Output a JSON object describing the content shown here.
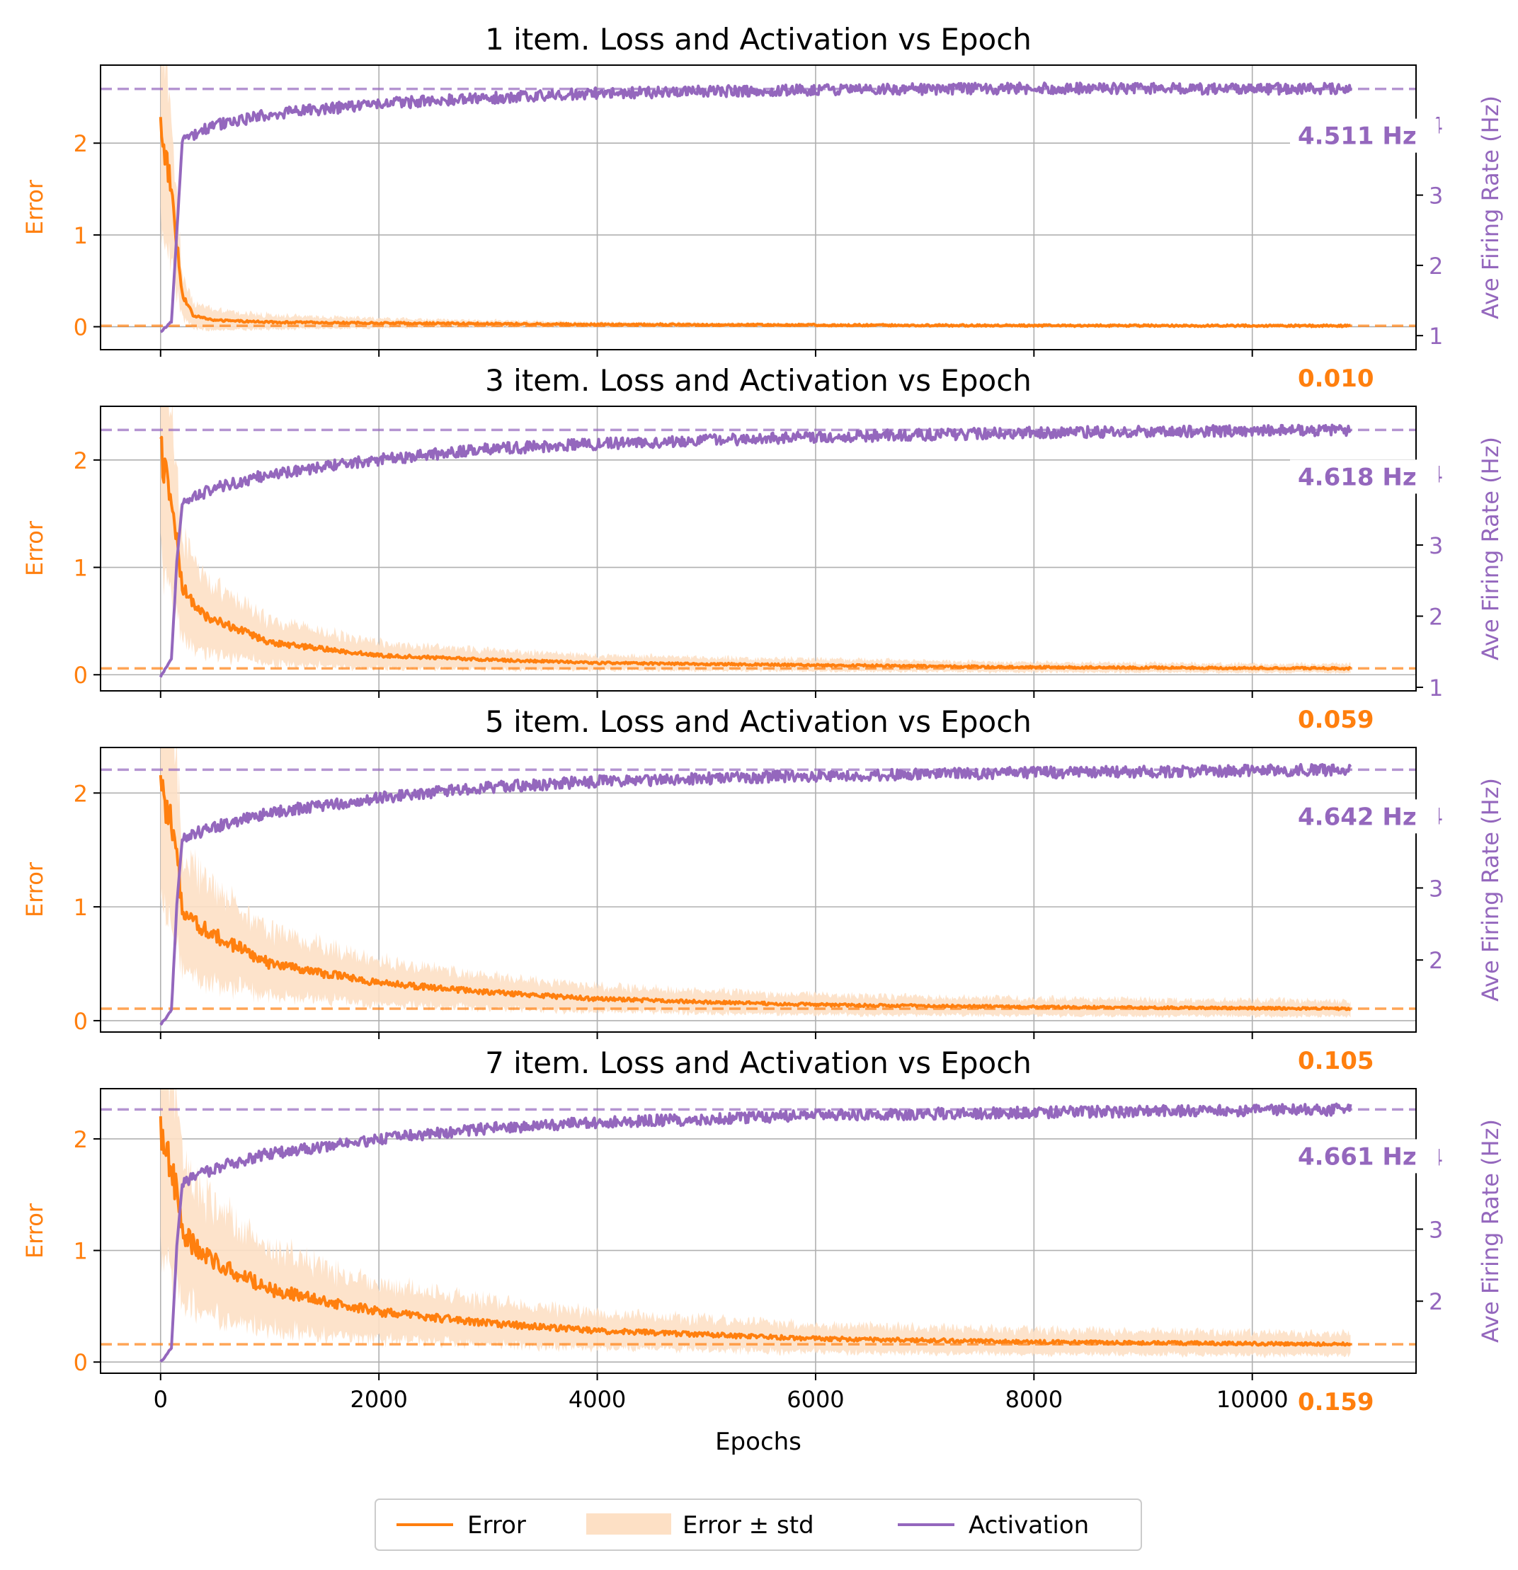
{
  "colors": {
    "error": "#ff7f0e",
    "error_band": "#fde0c5",
    "activation": "#9467bd",
    "grid": "#b0b0b0",
    "axis": "#000000"
  },
  "chart_data": [
    {
      "type": "line",
      "title": "1 item. Loss and Activation vs Epoch",
      "ylabel_left": "Error",
      "ylabel_right": "Ave Firing Rate (Hz)",
      "xlim": [
        -550,
        11500
      ],
      "ylim_left": [
        -0.25,
        2.85
      ],
      "ylim_right": [
        0.8,
        4.85
      ],
      "yticks_left": [
        0,
        1,
        2
      ],
      "yticks_right": [
        1,
        2,
        3,
        4
      ],
      "final_error": 0.01,
      "final_activation": 4.511,
      "final_error_label": "0.010",
      "final_activation_label": "4.511 Hz",
      "error_start": 2.2,
      "error_std_start": 0.4,
      "error_std_end": 0.04,
      "activation_start": 1.05,
      "activation_knee": 3.8,
      "series": [
        {
          "name": "Error",
          "x": [
            0,
            100,
            150,
            200,
            300,
            500,
            1000,
            2000,
            4000,
            6000,
            8000,
            10900
          ],
          "values": [
            2.2,
            1.5,
            0.9,
            0.35,
            0.12,
            0.07,
            0.05,
            0.04,
            0.025,
            0.018,
            0.013,
            0.01
          ]
        },
        {
          "name": "Activation",
          "x": [
            0,
            100,
            150,
            200,
            500,
            1000,
            2000,
            3000,
            4000,
            6000,
            8000,
            10900
          ],
          "values": [
            1.05,
            1.2,
            2.5,
            3.8,
            4.0,
            4.15,
            4.3,
            4.38,
            4.45,
            4.5,
            4.52,
            4.511
          ]
        }
      ]
    },
    {
      "type": "line",
      "title": "3 item. Loss and Activation vs Epoch",
      "ylabel_left": "Error",
      "ylabel_right": "Ave Firing Rate (Hz)",
      "xlim": [
        -550,
        11500
      ],
      "ylim_left": [
        -0.15,
        2.5
      ],
      "ylim_right": [
        0.95,
        4.95
      ],
      "yticks_left": [
        0,
        1,
        2
      ],
      "yticks_right": [
        1,
        2,
        3,
        4
      ],
      "final_error": 0.059,
      "final_activation": 4.618,
      "final_error_label": "0.059",
      "final_activation_label": "4.618 Hz",
      "error_start": 2.1,
      "error_std_start": 0.45,
      "error_std_end": 0.05,
      "activation_start": 1.15,
      "activation_knee": 3.6,
      "series": [
        {
          "name": "Error",
          "x": [
            0,
            100,
            150,
            200,
            400,
            1000,
            2000,
            3000,
            4000,
            6000,
            8000,
            10900
          ],
          "values": [
            2.1,
            1.6,
            1.2,
            0.8,
            0.55,
            0.3,
            0.18,
            0.14,
            0.11,
            0.09,
            0.07,
            0.059
          ]
        },
        {
          "name": "Activation",
          "x": [
            0,
            100,
            150,
            200,
            500,
            1000,
            2000,
            3000,
            4000,
            6000,
            8000,
            10900
          ],
          "values": [
            1.15,
            1.4,
            2.8,
            3.6,
            3.8,
            4.0,
            4.2,
            4.35,
            4.42,
            4.52,
            4.58,
            4.618
          ]
        }
      ]
    },
    {
      "type": "line",
      "title": "5 item. Loss and Activation vs Epoch",
      "ylabel_left": "Error",
      "ylabel_right": "Ave Firing Rate (Hz)",
      "xlim": [
        -550,
        11500
      ],
      "ylim_left": [
        -0.1,
        2.4
      ],
      "ylim_right": [
        1.0,
        4.95
      ],
      "yticks_left": [
        0,
        1,
        2
      ],
      "yticks_right": [
        2,
        3,
        4
      ],
      "final_error": 0.105,
      "final_activation": 4.642,
      "final_error_label": "0.105",
      "final_activation_label": "4.642 Hz",
      "error_start": 2.05,
      "error_std_start": 0.4,
      "error_std_end": 0.08,
      "activation_start": 1.1,
      "activation_knee": 3.7,
      "series": [
        {
          "name": "Error",
          "x": [
            0,
            100,
            150,
            200,
            400,
            1000,
            2000,
            3000,
            4000,
            6000,
            8000,
            10900
          ],
          "values": [
            2.05,
            1.7,
            1.4,
            1.0,
            0.8,
            0.5,
            0.33,
            0.25,
            0.19,
            0.14,
            0.12,
            0.105
          ]
        },
        {
          "name": "Activation",
          "x": [
            0,
            100,
            150,
            200,
            500,
            1000,
            2000,
            3000,
            4000,
            6000,
            8000,
            10900
          ],
          "values": [
            1.1,
            1.3,
            2.8,
            3.7,
            3.85,
            4.05,
            4.25,
            4.4,
            4.48,
            4.56,
            4.6,
            4.642
          ]
        }
      ]
    },
    {
      "type": "line",
      "title": "7 item. Loss and Activation vs Epoch",
      "ylabel_left": "Error",
      "ylabel_right": "Ave Firing Rate (Hz)",
      "xlim": [
        -550,
        11500
      ],
      "xlabel": "Epochs",
      "xticks": [
        0,
        2000,
        4000,
        6000,
        8000,
        10000
      ],
      "ylim_left": [
        -0.1,
        2.45
      ],
      "ylim_right": [
        1.0,
        4.95
      ],
      "yticks_left": [
        0,
        1,
        2
      ],
      "yticks_right": [
        2,
        3,
        4
      ],
      "final_error": 0.159,
      "final_activation": 4.661,
      "final_error_label": "0.159",
      "final_activation_label": "4.661 Hz",
      "error_start": 2.08,
      "error_std_start": 0.4,
      "error_std_end": 0.1,
      "activation_start": 1.15,
      "activation_knee": 3.65,
      "series": [
        {
          "name": "Error",
          "x": [
            0,
            100,
            150,
            200,
            400,
            1000,
            2000,
            3000,
            4000,
            6000,
            8000,
            10900
          ],
          "values": [
            2.08,
            1.75,
            1.5,
            1.15,
            0.95,
            0.65,
            0.45,
            0.35,
            0.28,
            0.21,
            0.18,
            0.159
          ]
        },
        {
          "name": "Activation",
          "x": [
            0,
            100,
            150,
            200,
            500,
            1000,
            2000,
            3000,
            4000,
            6000,
            8000,
            10900
          ],
          "values": [
            1.15,
            1.35,
            2.8,
            3.65,
            3.85,
            4.05,
            4.25,
            4.4,
            4.48,
            4.58,
            4.62,
            4.661
          ]
        }
      ]
    }
  ],
  "legend": {
    "placement": "bottom-center",
    "items": [
      {
        "label": "Error",
        "kind": "line",
        "color": "#ff7f0e"
      },
      {
        "label": "Error ± std",
        "kind": "patch",
        "color": "#fde0c5"
      },
      {
        "label": "Activation",
        "kind": "line",
        "color": "#9467bd"
      }
    ]
  }
}
